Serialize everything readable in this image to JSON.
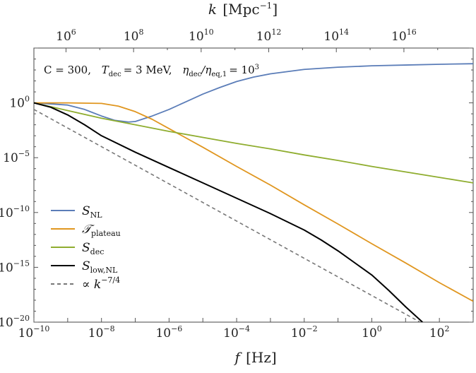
{
  "chart_data": {
    "type": "line",
    "x_scale": "log",
    "y_scale": "log",
    "xlabel_var": "f",
    "xlabel_unit": "[Hz]",
    "top_label_var": "k",
    "top_label_unit": "[Mpc",
    "top_label_unit_sup": "−1",
    "top_label_unit_end": "]",
    "annotation": {
      "c_text": "C = 300,",
      "t_var": "T",
      "t_sub": "dec",
      "t_val": "= 3 MeV,",
      "eta_num": "η",
      "eta_num_sub": "dec",
      "eta_den": "/η",
      "eta_den_sub": "eq,1",
      "eta_val": "= 10",
      "eta_exp": "3"
    },
    "xlim_log10": [
      -10,
      3
    ],
    "ylim_log10": [
      -20,
      5
    ],
    "x_ticks": [
      {
        "pos": -10,
        "base": "10",
        "exp": "−10"
      },
      {
        "pos": -8,
        "base": "10",
        "exp": "−8"
      },
      {
        "pos": -6,
        "base": "10",
        "exp": "−6"
      },
      {
        "pos": -4,
        "base": "10",
        "exp": "−4"
      },
      {
        "pos": -2,
        "base": "10",
        "exp": "−2"
      },
      {
        "pos": 0,
        "base": "10",
        "exp": "0"
      },
      {
        "pos": 2,
        "base": "10",
        "exp": "2"
      }
    ],
    "y_ticks": [
      {
        "pos": 0,
        "base": "10",
        "exp": "0"
      },
      {
        "pos": -5,
        "base": "10",
        "exp": "−5"
      },
      {
        "pos": -10,
        "base": "10",
        "exp": "−10"
      },
      {
        "pos": -15,
        "base": "10",
        "exp": "−15"
      },
      {
        "pos": -20,
        "base": "10",
        "exp": "−20"
      }
    ],
    "top_ticks": [
      {
        "f_log10": -9.05,
        "base": "10",
        "exp": "6"
      },
      {
        "f_log10": -7.05,
        "base": "10",
        "exp": "8"
      },
      {
        "f_log10": -5.05,
        "base": "10",
        "exp": "10"
      },
      {
        "f_log10": -3.05,
        "base": "10",
        "exp": "12"
      },
      {
        "f_log10": -1.05,
        "base": "10",
        "exp": "14"
      },
      {
        "f_log10": 0.95,
        "base": "10",
        "exp": "16"
      }
    ],
    "series": [
      {
        "name": "S",
        "sub": "NL",
        "style": "solid",
        "color": "#5b7db8",
        "x_log10": [
          -10,
          -9,
          -8.5,
          -8,
          -7.6,
          -7.2,
          -7,
          -6.8,
          -6.5,
          -6,
          -5.5,
          -5,
          -4.5,
          -4,
          -3.5,
          -3,
          -2,
          -1,
          0,
          1,
          2,
          3
        ],
        "y_log10": [
          0,
          -0.2,
          -0.6,
          -1.2,
          -1.6,
          -1.75,
          -1.7,
          -1.5,
          -1.2,
          -0.6,
          0.1,
          0.8,
          1.4,
          1.95,
          2.35,
          2.65,
          3.05,
          3.25,
          3.38,
          3.45,
          3.52,
          3.57
        ]
      },
      {
        "name": "𝒯",
        "sub": "plateau",
        "style": "solid",
        "color": "#e0961f",
        "x_log10": [
          -10,
          -9,
          -8,
          -7.5,
          -7,
          -6.5,
          -6,
          -5.5,
          -5,
          -4,
          -3,
          -2,
          -1,
          0,
          1,
          2,
          3
        ],
        "y_log10": [
          0,
          0,
          -0.05,
          -0.3,
          -0.8,
          -1.5,
          -2.35,
          -3.2,
          -4.05,
          -5.8,
          -7.5,
          -9.3,
          -11.05,
          -12.85,
          -14.6,
          -16.4,
          -18.1
        ]
      },
      {
        "name": "S",
        "sub": "dec",
        "style": "solid",
        "color": "#8fad2f",
        "x_log10": [
          -10,
          -9,
          -8,
          -7,
          -6,
          -5,
          -4,
          -3,
          -2,
          -1,
          0,
          1,
          2,
          3
        ],
        "y_log10": [
          0,
          -0.7,
          -1.4,
          -2.0,
          -2.6,
          -3.15,
          -3.7,
          -4.2,
          -4.75,
          -5.25,
          -5.8,
          -6.3,
          -6.8,
          -7.3
        ]
      },
      {
        "name": "S",
        "sub": "low,NL",
        "style": "solid",
        "color": "#000000",
        "x_log10": [
          -10,
          -9.5,
          -9,
          -8.5,
          -8,
          -7,
          -6,
          -5,
          -4,
          -3,
          -2,
          -1.5,
          -1,
          0,
          0.5,
          1,
          1.5
        ],
        "y_log10": [
          0,
          -0.4,
          -1.1,
          -2.0,
          -3.0,
          -4.5,
          -5.9,
          -7.3,
          -8.7,
          -10.1,
          -11.6,
          -12.5,
          -13.5,
          -15.7,
          -17.1,
          -18.6,
          -20.0
        ]
      },
      {
        "name": "∝ k",
        "sup": "−7/4",
        "style": "dashed",
        "color": "#777777",
        "x_log10": [
          -10,
          1.43
        ],
        "y_log10": [
          -0.6,
          -20
        ]
      }
    ]
  }
}
